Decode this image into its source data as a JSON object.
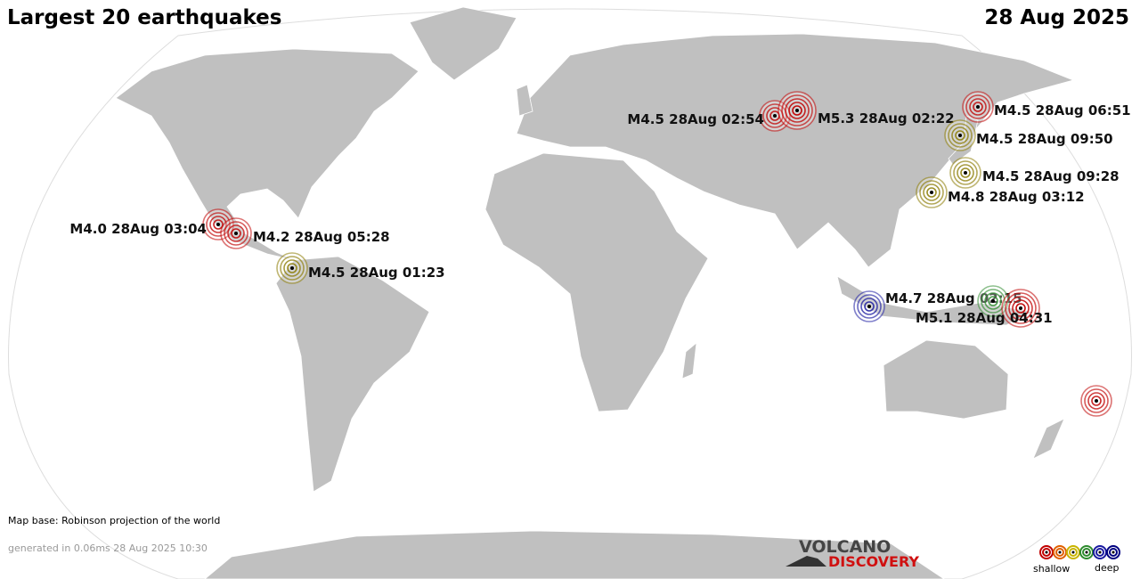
{
  "header": {
    "title": "Largest 20 earthquakes",
    "date": "28 Aug 2025"
  },
  "quakes": [
    {
      "label": "M4.0 28Aug 03:04",
      "color": "#c00000"
    },
    {
      "label": "M4.2 28Aug 05:28",
      "color": "#c00000"
    },
    {
      "label": "M4.5 28Aug 01:23",
      "color": "#8a7a00"
    },
    {
      "label": "M4.5 28Aug 02:54",
      "color": "#c00000"
    },
    {
      "label": "M5.3 28Aug 02:22",
      "color": "#c00000"
    },
    {
      "label": "M4.5 28Aug 06:51",
      "color": "#c00000"
    },
    {
      "label": "M4.5 28Aug 09:50",
      "color": "#8a7a00"
    },
    {
      "label": "M4.5 28Aug 09:28",
      "color": "#8a7a00"
    },
    {
      "label": "M4.8 28Aug 03:12",
      "color": "#8a7a00"
    },
    {
      "label": "M4.7 28Aug 02:15",
      "color": "#1a1aa0"
    },
    {
      "color": "#2e8b2e"
    },
    {
      "label": "M5.1 28Aug 04:31",
      "color": "#c00000"
    },
    {
      "color": "#c00000"
    }
  ],
  "footer": {
    "map_base": "Map base: Robinson projection of the world",
    "generated": "generated in 0.06ms 28 Aug 2025 10:30"
  },
  "logo": {
    "line1": "VOLCANO",
    "line2": "DISCOVERY"
  },
  "legend": {
    "colors": [
      "#c00000",
      "#e06000",
      "#c8b400",
      "#2e8b2e",
      "#1a1aa0",
      "#000080"
    ],
    "shallow": "shallow",
    "deep": "deep"
  }
}
